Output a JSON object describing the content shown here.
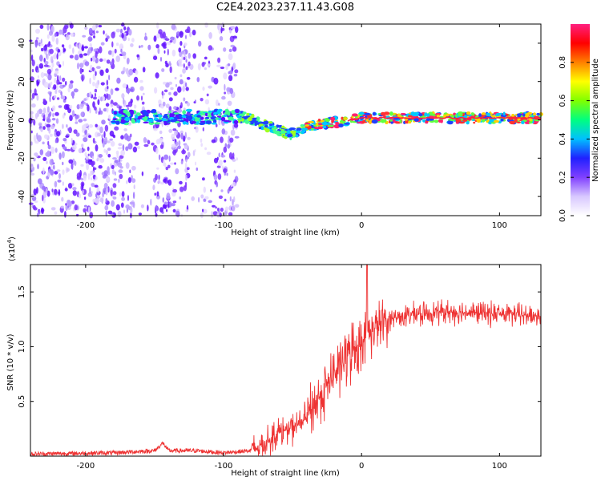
{
  "title": "C2E4.2023.237.11.43.G08",
  "chart_data": [
    {
      "type": "heatmap",
      "xlabel": "Height of straight line (km)",
      "ylabel": "Frequency (Hz)",
      "xlim": [
        -240,
        130
      ],
      "ylim": [
        -50,
        50
      ],
      "xticks": [
        "-200",
        "-100",
        "0",
        "100"
      ],
      "yticks": [
        "40",
        "20",
        "0",
        "-20",
        "-40"
      ],
      "colorbar": {
        "label": "Normalized spectral amplitude",
        "range": [
          0,
          1
        ],
        "ticks": [
          "0.0",
          "0.2",
          "0.4",
          "0.6",
          "0.8"
        ],
        "colors": [
          "#ffffff",
          "#d8c8ff",
          "#8040ff",
          "#2020ff",
          "#00c0ff",
          "#00ff80",
          "#80ff00",
          "#ffff00",
          "#ff8000",
          "#ff0000",
          "#ff2080"
        ]
      },
      "features": {
        "scatter_region_x": [
          -240,
          -90
        ],
        "band_start_x": -180,
        "band_center_freq": 0
      }
    },
    {
      "type": "line",
      "xlabel": "Height of straight line (km)",
      "ylabel": "SNR (10 * v/v)",
      "multiplier": "(x10",
      "multiplier_exp": "4",
      "xlim": [
        -240,
        130
      ],
      "ylim": [
        0,
        1.75
      ],
      "xticks": [
        "-200",
        "-100",
        "0",
        "100"
      ],
      "yticks": [
        "1.5",
        "1.0",
        "0.5"
      ],
      "color": "#ee3333",
      "profile": [
        [
          -240,
          0.02
        ],
        [
          -180,
          0.03
        ],
        [
          -150,
          0.05
        ],
        [
          -144,
          0.12
        ],
        [
          -140,
          0.05
        ],
        [
          -120,
          0.05
        ],
        [
          -100,
          0.03
        ],
        [
          -80,
          0.05
        ],
        [
          -70,
          0.12
        ],
        [
          -60,
          0.22
        ],
        [
          -50,
          0.25
        ],
        [
          -40,
          0.35
        ],
        [
          -30,
          0.55
        ],
        [
          -20,
          0.75
        ],
        [
          -10,
          0.92
        ],
        [
          0,
          1.05
        ],
        [
          10,
          1.18
        ],
        [
          20,
          1.25
        ],
        [
          30,
          1.28
        ],
        [
          60,
          1.32
        ],
        [
          100,
          1.3
        ],
        [
          130,
          1.28
        ]
      ],
      "spike": [
        4,
        1.8
      ]
    }
  ]
}
